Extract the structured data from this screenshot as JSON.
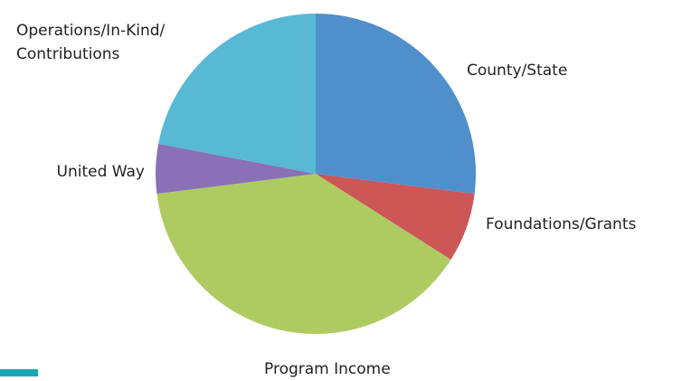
{
  "chart_data": {
    "type": "pie",
    "categories": [
      "County/State",
      "Foundations/Grants",
      "Program Income",
      "United Way",
      "Operations/In-Kind/ Contributions"
    ],
    "values": [
      27,
      7,
      39,
      5,
      22
    ],
    "colors": [
      "#4f8fcc",
      "#cd5656",
      "#aecb62",
      "#8a70b6",
      "#57b9d3"
    ]
  }
}
